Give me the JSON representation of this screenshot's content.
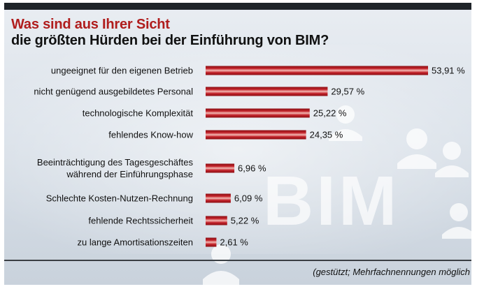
{
  "title_line1": "Was sind aus Ihrer Sicht",
  "title_line2": "die größten Hürden bei der Einführung von BIM?",
  "background_text": "BIM",
  "footnote": "(gestützt; Mehrfachnennungen möglich",
  "colors": {
    "bar_dark": "#8b0f14",
    "bar_mid": "#c3222a",
    "bar_light": "#f2b8b3",
    "title_accent": "#b01d1d"
  },
  "chart_data": {
    "type": "bar",
    "orientation": "horizontal",
    "title": "Was sind aus Ihrer Sicht die größten Hürden bei der Einführung von BIM?",
    "categories": [
      [
        "ungeeignet für den eigenen Betrieb"
      ],
      [
        "nicht genügend ausgebildetes Personal"
      ],
      [
        "technologische Komplexität"
      ],
      [
        "fehlendes Know-how"
      ],
      [
        "Beeinträchtigung des Tagesgeschäftes",
        "während der Einführungsphase"
      ],
      [
        "Schlechte Kosten-Nutzen-Rechnung"
      ],
      [
        "fehlende Rechtssicherheit"
      ],
      [
        "zu lange Amortisationszeiten"
      ]
    ],
    "values": [
      53.91,
      29.57,
      25.22,
      24.35,
      6.96,
      6.09,
      5.22,
      2.61
    ],
    "value_labels": [
      "53,91 %",
      "29,57 %",
      "25,22 %",
      "24,35 %",
      "6,96 %",
      "6,09 %",
      "5,22 %",
      "2,61 %"
    ],
    "xlim": [
      0,
      53.91
    ],
    "grid": false,
    "legend": "none"
  }
}
